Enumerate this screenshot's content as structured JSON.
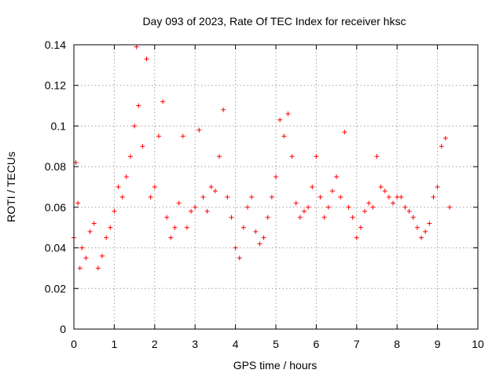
{
  "chart_data": {
    "type": "scatter",
    "title": "Day 093 of 2023, Rate Of TEC Index for receiver hksc",
    "xlabel": "GPS time / hours",
    "ylabel": "ROTI / TECUs",
    "xlim": [
      0,
      10
    ],
    "ylim": [
      0,
      0.14
    ],
    "xticks": [
      "0",
      "1",
      "2",
      "3",
      "4",
      "5",
      "6",
      "7",
      "8",
      "9",
      "10"
    ],
    "yticks": [
      "0",
      "0.02",
      "0.04",
      "0.06",
      "0.08",
      "0.1",
      "0.12",
      "0.14"
    ],
    "grid": true,
    "marker": "+",
    "colors": {
      "series": "#ff0000",
      "grid": "#a0a0a0"
    },
    "x_range_data": [
      0,
      9.3
    ],
    "series": [
      {
        "x": [
          0.0,
          0.05,
          0.1,
          0.15,
          0.2,
          0.3,
          0.4,
          0.5,
          0.6,
          0.7,
          0.8,
          0.9,
          1.0,
          1.1,
          1.2,
          1.3,
          1.4,
          1.5,
          1.55,
          1.6,
          1.7,
          1.8,
          1.9,
          2.0,
          2.1,
          2.2,
          2.3,
          2.4,
          2.5,
          2.6,
          2.7,
          2.8,
          2.9,
          3.0,
          3.1,
          3.2,
          3.3,
          3.4,
          3.5,
          3.6,
          3.7,
          3.8,
          3.9,
          4.0,
          4.1,
          4.2,
          4.3,
          4.4,
          4.5,
          4.6,
          4.7,
          4.8,
          4.9,
          5.0,
          5.1,
          5.2,
          5.3,
          5.4,
          5.5,
          5.6,
          5.7,
          5.8,
          5.9,
          6.0,
          6.1,
          6.2,
          6.3,
          6.4,
          6.5,
          6.6,
          6.7,
          6.8,
          6.9,
          7.0,
          7.1,
          7.2,
          7.3,
          7.4,
          7.5,
          7.6,
          7.7,
          7.8,
          7.9,
          8.0,
          8.1,
          8.2,
          8.3,
          8.4,
          8.5,
          8.6,
          8.7,
          8.8,
          8.9,
          9.0,
          9.1,
          9.2,
          9.3
        ],
        "y": [
          0.045,
          0.082,
          0.062,
          0.03,
          0.04,
          0.035,
          0.048,
          0.052,
          0.03,
          0.036,
          0.045,
          0.05,
          0.058,
          0.07,
          0.065,
          0.075,
          0.085,
          0.1,
          0.139,
          0.11,
          0.09,
          0.133,
          0.065,
          0.07,
          0.095,
          0.112,
          0.055,
          0.045,
          0.05,
          0.062,
          0.095,
          0.05,
          0.058,
          0.06,
          0.098,
          0.065,
          0.058,
          0.07,
          0.068,
          0.085,
          0.108,
          0.065,
          0.055,
          0.04,
          0.035,
          0.05,
          0.06,
          0.065,
          0.048,
          0.042,
          0.045,
          0.055,
          0.065,
          0.075,
          0.103,
          0.095,
          0.106,
          0.085,
          0.062,
          0.055,
          0.058,
          0.06,
          0.07,
          0.085,
          0.065,
          0.055,
          0.06,
          0.068,
          0.075,
          0.065,
          0.097,
          0.06,
          0.055,
          0.045,
          0.05,
          0.058,
          0.062,
          0.06,
          0.085,
          0.07,
          0.068,
          0.065,
          0.062,
          0.065,
          0.065,
          0.06,
          0.058,
          0.055,
          0.05,
          0.045,
          0.048,
          0.052,
          0.065,
          0.07,
          0.09,
          0.094,
          0.06
        ]
      }
    ]
  }
}
